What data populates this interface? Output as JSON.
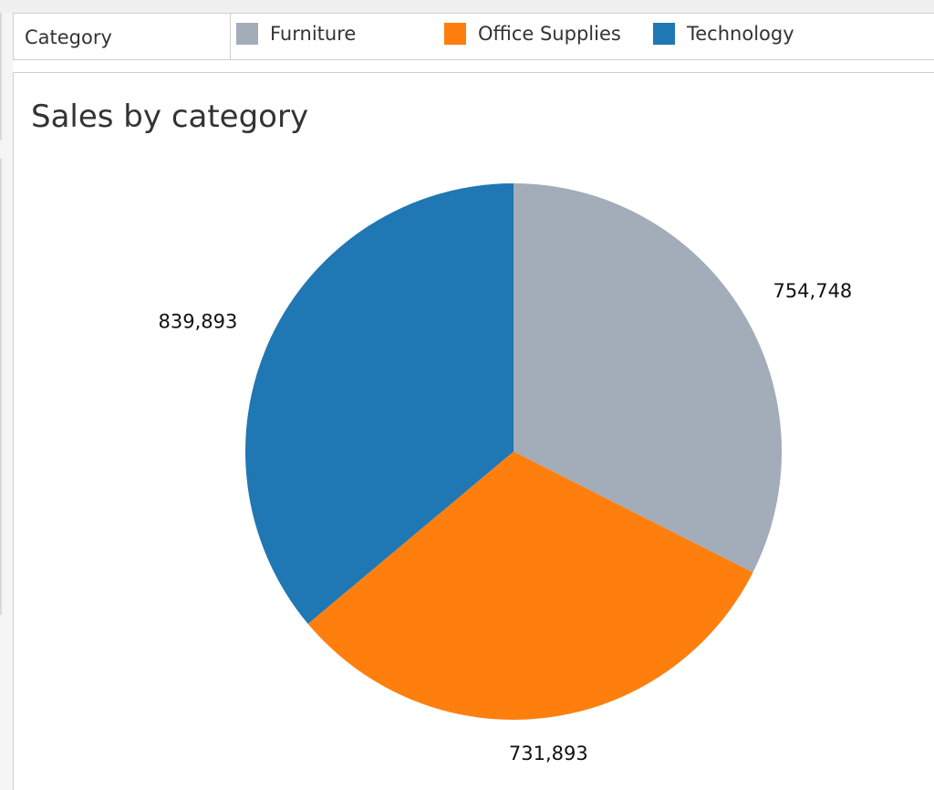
{
  "legend": {
    "title": "Category",
    "items": [
      {
        "label": "Furniture",
        "color": "#a3acb9"
      },
      {
        "label": "Office Supplies",
        "color": "#ff7f0e"
      },
      {
        "label": "Technology",
        "color": "#1f77b4"
      }
    ]
  },
  "chart_data": {
    "type": "pie",
    "title": "Sales by category",
    "categories": [
      "Furniture",
      "Office Supplies",
      "Technology"
    ],
    "values": [
      754748,
      731893,
      839893
    ],
    "data_labels": [
      "754,748",
      "731,893",
      "839,893"
    ],
    "colors": [
      "#a3acb9",
      "#ff7f0e",
      "#1f77b4"
    ],
    "start": "12 o'clock",
    "direction": "clockwise",
    "legend_placement": "top"
  }
}
